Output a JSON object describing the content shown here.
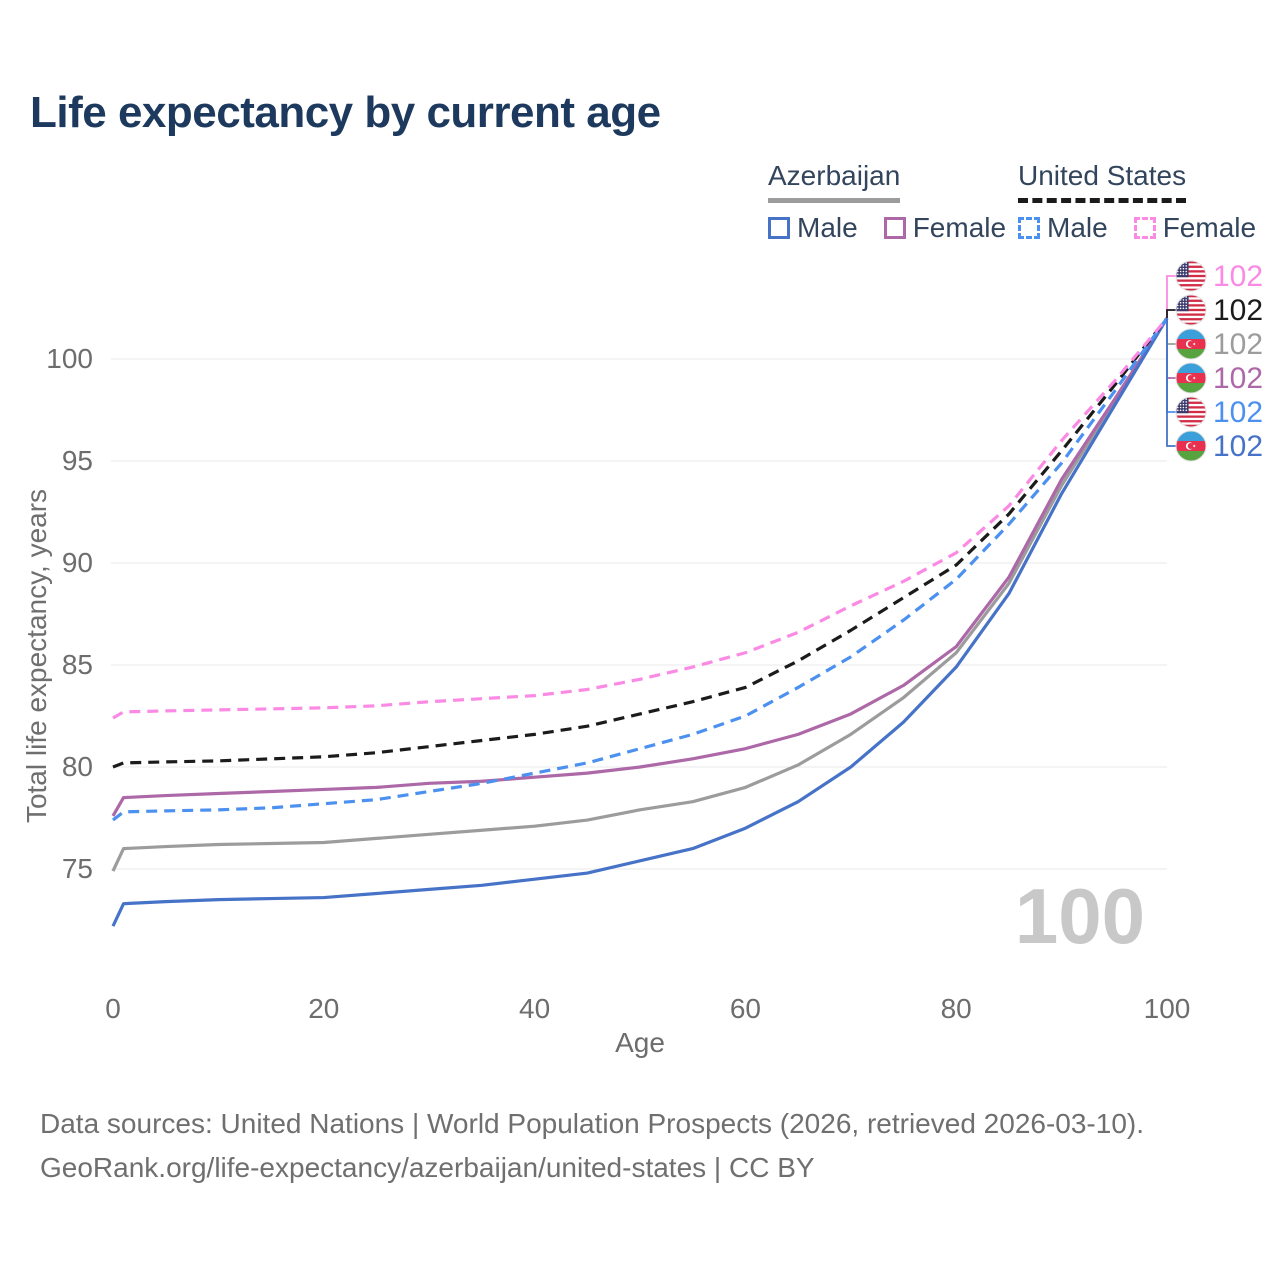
{
  "title": "Life expectancy by current age",
  "watermark": "100",
  "legend": {
    "groups": [
      {
        "label": "Azerbaijan",
        "underline_style": "solid",
        "underline_color": "#9c9c9c",
        "items": [
          {
            "label": "Male",
            "color": "#4673c8",
            "style": "solid"
          },
          {
            "label": "Female",
            "color": "#ad68a8",
            "style": "solid"
          }
        ]
      },
      {
        "label": "United States",
        "underline_style": "dashed",
        "underline_color": "#1b1b1b",
        "items": [
          {
            "label": "Male",
            "color": "#4c90f0",
            "style": "dashed"
          },
          {
            "label": "Female",
            "color": "#fb8ae4",
            "style": "dashed"
          }
        ]
      }
    ]
  },
  "chart_data": {
    "type": "line",
    "title": "Life expectancy by current age",
    "xlabel": "Age",
    "ylabel": "Total life expectancy, years",
    "xlim": [
      0,
      100
    ],
    "ylim": [
      71.5,
      103
    ],
    "xticks": [
      0,
      20,
      40,
      60,
      80,
      100
    ],
    "yticks": [
      75,
      80,
      85,
      90,
      95,
      100
    ],
    "grid": "horizontal",
    "legend_position": "top-right",
    "x": [
      0,
      1,
      5,
      10,
      15,
      20,
      25,
      30,
      35,
      40,
      45,
      50,
      55,
      60,
      65,
      70,
      75,
      80,
      85,
      90,
      95,
      100
    ],
    "series": [
      {
        "key": "az_male",
        "country": "Azerbaijan",
        "name": "Male",
        "color": "#4673c8",
        "dash": "solid",
        "values": [
          72.2,
          73.3,
          73.4,
          73.5,
          73.55,
          73.6,
          73.8,
          74,
          74.2,
          74.5,
          74.8,
          75.4,
          76,
          77,
          78.3,
          80,
          82.2,
          84.9,
          88.5,
          93.4,
          97.7,
          102
        ]
      },
      {
        "key": "az_female",
        "country": "Azerbaijan",
        "name": "Female",
        "color": "#ad68a8",
        "dash": "solid",
        "values": [
          77.6,
          78.5,
          78.6,
          78.7,
          78.8,
          78.9,
          79,
          79.2,
          79.3,
          79.5,
          79.7,
          80,
          80.4,
          80.9,
          81.6,
          82.6,
          84,
          85.9,
          89.3,
          94.1,
          98,
          102
        ]
      },
      {
        "key": "az_total",
        "country": "Azerbaijan",
        "name": "Azerbaijan (both sexes)",
        "color": "#9c9c9c",
        "dash": "solid",
        "values": [
          74.9,
          76,
          76.1,
          76.2,
          76.25,
          76.3,
          76.5,
          76.7,
          76.9,
          77.1,
          77.4,
          77.9,
          78.3,
          79,
          80.1,
          81.6,
          83.4,
          85.6,
          89,
          93.8,
          97.9,
          102
        ]
      },
      {
        "key": "us_male",
        "country": "United States",
        "name": "Male",
        "color": "#4c90f0",
        "dash": "dashed",
        "values": [
          77.4,
          77.8,
          77.85,
          77.9,
          78,
          78.2,
          78.4,
          78.8,
          79.2,
          79.7,
          80.2,
          80.9,
          81.6,
          82.5,
          83.9,
          85.4,
          87.2,
          89.2,
          91.9,
          94.9,
          98.4,
          102
        ]
      },
      {
        "key": "us_female",
        "country": "United States",
        "name": "Female",
        "color": "#fb8ae4",
        "dash": "dashed",
        "values": [
          82.4,
          82.7,
          82.75,
          82.8,
          82.85,
          82.9,
          83,
          83.2,
          83.35,
          83.5,
          83.8,
          84.3,
          84.9,
          85.6,
          86.6,
          87.9,
          89.1,
          90.5,
          92.8,
          96,
          98.9,
          102
        ]
      },
      {
        "key": "us_total",
        "country": "United States",
        "name": "United States (both sexes)",
        "color": "#1b1b1b",
        "dash": "dashed",
        "values": [
          80,
          80.2,
          80.25,
          80.3,
          80.4,
          80.5,
          80.7,
          81,
          81.3,
          81.6,
          82,
          82.6,
          83.2,
          83.9,
          85.2,
          86.7,
          88.3,
          89.9,
          92.4,
          95.5,
          98.7,
          102
        ]
      }
    ],
    "end_labels": [
      {
        "series": "us_female",
        "flag": "us",
        "value": "102"
      },
      {
        "series": "us_total",
        "flag": "us",
        "value": "102"
      },
      {
        "series": "az_total",
        "flag": "az",
        "value": "102"
      },
      {
        "series": "az_female",
        "flag": "az",
        "value": "102"
      },
      {
        "series": "us_male",
        "flag": "us",
        "value": "102"
      },
      {
        "series": "az_male",
        "flag": "az",
        "value": "102"
      }
    ]
  },
  "footer": {
    "line1": "Data sources: United Nations | World Population Prospects (2026, retrieved 2026-03-10).",
    "line2": "GeoRank.org/life-expectancy/azerbaijan/united-states | CC BY"
  }
}
